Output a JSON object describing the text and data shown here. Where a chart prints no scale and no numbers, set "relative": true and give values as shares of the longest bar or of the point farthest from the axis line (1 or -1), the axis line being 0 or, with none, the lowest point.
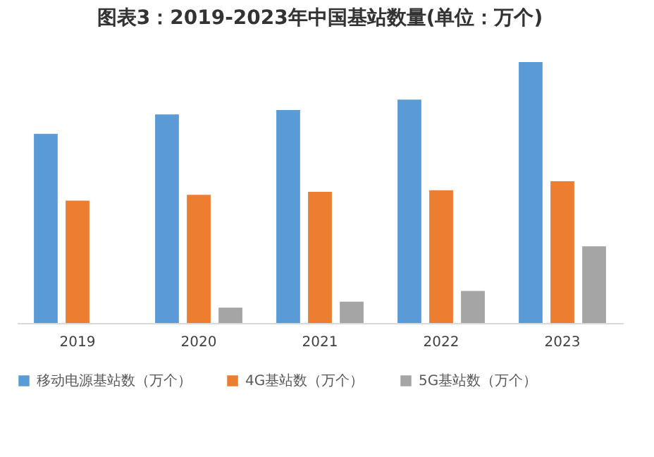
{
  "chart_data": {
    "type": "bar",
    "title": "图表3：2019-2023年中国基站数量(单位：万个)",
    "relative": true,
    "categories": [
      "2019",
      "2020",
      "2021",
      "2022",
      "2023"
    ],
    "series": [
      {
        "name": "移动电源基站数（万个）",
        "color": "#5b9bd5",
        "values": [
          0.725,
          0.799,
          0.816,
          0.856,
          1
        ]
      },
      {
        "name": "4G基站数（万个）",
        "color": "#ed7d31",
        "values": [
          0.469,
          0.491,
          0.503,
          0.509,
          0.543
        ]
      },
      {
        "name": "5G基站数（万个）",
        "color": "#a5a5a5",
        "values": [
          null,
          0.059,
          0.082,
          0.123,
          0.294
        ]
      }
    ],
    "legend": "bottom"
  }
}
